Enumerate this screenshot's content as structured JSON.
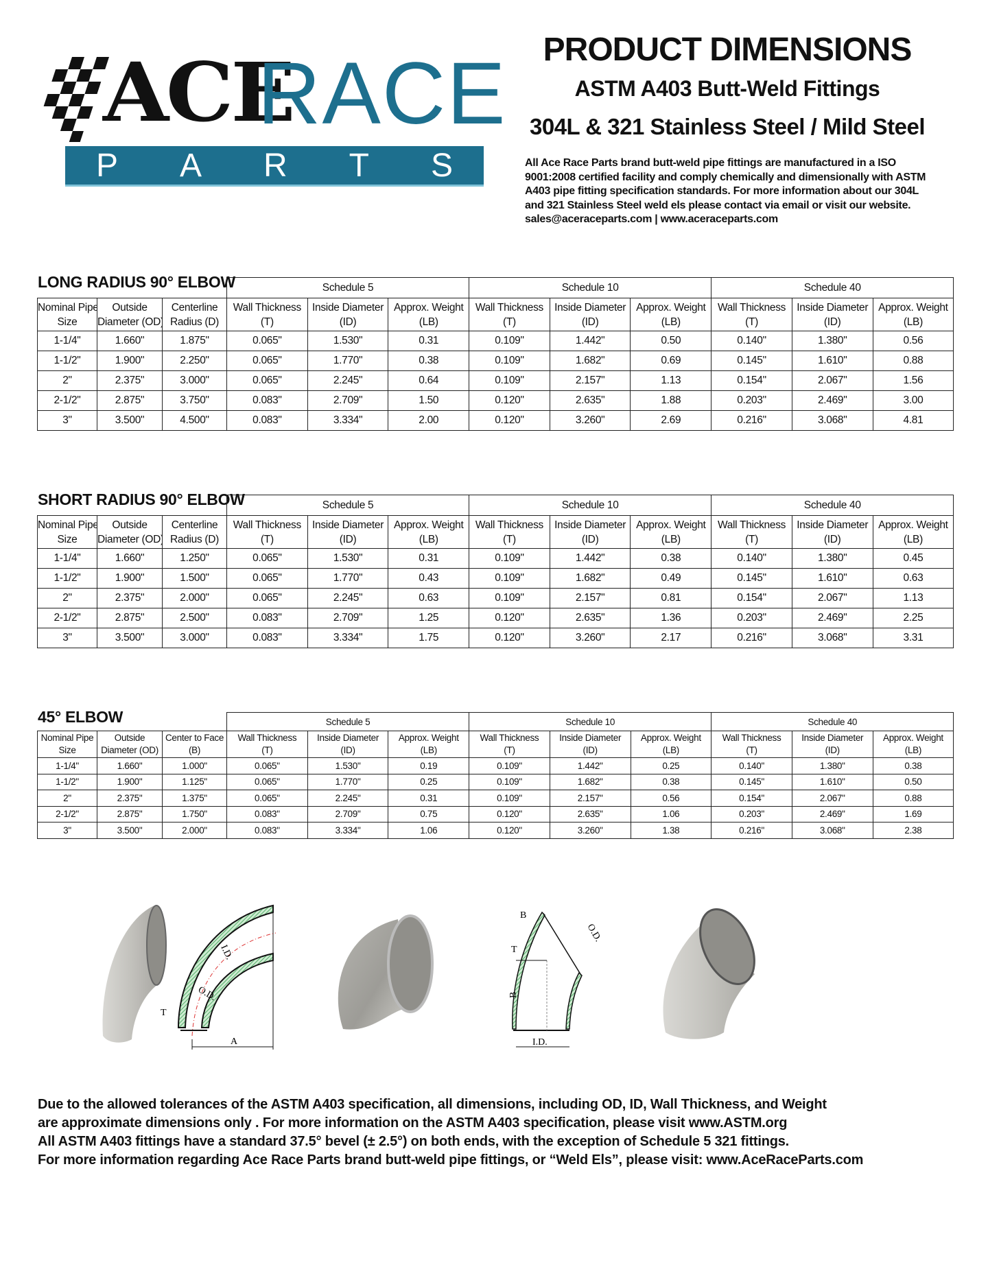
{
  "logo": {
    "word1": "ACE",
    "word2": "RACE",
    "word3": [
      "P",
      "A",
      "R",
      "T",
      "S"
    ],
    "colors": {
      "brand": "#1d6f8e",
      "dark": "#111111"
    }
  },
  "header": {
    "title": "PRODUCT DIMENSIONS",
    "subtitle1": "ASTM A403 Butt-Weld Fittings",
    "subtitle2": "304L & 321 Stainless Steel / Mild Steel",
    "intro": "All Ace Race Parts brand butt-weld pipe fittings are manufactured in a ISO 9001:2008 certified facility and comply chemically and dimensionally with ASTM A403 pipe fitting specification standards. For more information about our 304L and 321 Stainless Steel weld els please contact via email or visit our website. sales@aceraceparts.com | www.aceraceparts.com"
  },
  "tables": [
    {
      "title": "LONG RADIUS 90° ELBOW",
      "schedules": [
        "Schedule 5",
        "Schedule 10",
        "Schedule 40"
      ],
      "headers": [
        [
          "Nominal Pipe",
          "Size"
        ],
        [
          "Outside",
          "Diameter (OD)"
        ],
        [
          "Centerline",
          "Radius (D)"
        ],
        [
          "Wall Thickness",
          "(T)"
        ],
        [
          "Inside Diameter",
          "(ID)"
        ],
        [
          "Approx. Weight",
          "(LB)"
        ],
        [
          "Wall Thickness",
          "(T)"
        ],
        [
          "Inside Diameter",
          "(ID)"
        ],
        [
          "Approx. Weight",
          "(LB)"
        ],
        [
          "Wall Thickness",
          "(T)"
        ],
        [
          "Inside Diameter",
          "(ID)"
        ],
        [
          "Approx. Weight",
          "(LB)"
        ]
      ],
      "rows": [
        [
          "1-1/4\"",
          "1.660\"",
          "1.875\"",
          "0.065\"",
          "1.530\"",
          "0.31",
          "0.109\"",
          "1.442\"",
          "0.50",
          "0.140\"",
          "1.380\"",
          "0.56"
        ],
        [
          "1-1/2\"",
          "1.900\"",
          "2.250\"",
          "0.065\"",
          "1.770\"",
          "0.38",
          "0.109\"",
          "1.682\"",
          "0.69",
          "0.145\"",
          "1.610\"",
          "0.88"
        ],
        [
          "2\"",
          "2.375\"",
          "3.000\"",
          "0.065\"",
          "2.245\"",
          "0.64",
          "0.109\"",
          "2.157\"",
          "1.13",
          "0.154\"",
          "2.067\"",
          "1.56"
        ],
        [
          "2-1/2\"",
          "2.875\"",
          "3.750\"",
          "0.083\"",
          "2.709\"",
          "1.50",
          "0.120\"",
          "2.635\"",
          "1.88",
          "0.203\"",
          "2.469\"",
          "3.00"
        ],
        [
          "3\"",
          "3.500\"",
          "4.500\"",
          "0.083\"",
          "3.334\"",
          "2.00",
          "0.120\"",
          "3.260\"",
          "2.69",
          "0.216\"",
          "3.068\"",
          "4.81"
        ]
      ]
    },
    {
      "title": "SHORT RADIUS 90° ELBOW",
      "schedules": [
        "Schedule 5",
        "Schedule 10",
        "Schedule 40"
      ],
      "headers": [
        [
          "Nominal Pipe",
          "Size"
        ],
        [
          "Outside",
          "Diameter (OD)"
        ],
        [
          "Centerline",
          "Radius (D)"
        ],
        [
          "Wall Thickness",
          "(T)"
        ],
        [
          "Inside Diameter",
          "(ID)"
        ],
        [
          "Approx. Weight",
          "(LB)"
        ],
        [
          "Wall Thickness",
          "(T)"
        ],
        [
          "Inside Diameter",
          "(ID)"
        ],
        [
          "Approx. Weight",
          "(LB)"
        ],
        [
          "Wall Thickness",
          "(T)"
        ],
        [
          "Inside Diameter",
          "(ID)"
        ],
        [
          "Approx. Weight",
          "(LB)"
        ]
      ],
      "rows": [
        [
          "1-1/4\"",
          "1.660\"",
          "1.250\"",
          "0.065\"",
          "1.530\"",
          "0.31",
          "0.109\"",
          "1.442\"",
          "0.38",
          "0.140\"",
          "1.380\"",
          "0.45"
        ],
        [
          "1-1/2\"",
          "1.900\"",
          "1.500\"",
          "0.065\"",
          "1.770\"",
          "0.43",
          "0.109\"",
          "1.682\"",
          "0.49",
          "0.145\"",
          "1.610\"",
          "0.63"
        ],
        [
          "2\"",
          "2.375\"",
          "2.000\"",
          "0.065\"",
          "2.245\"",
          "0.63",
          "0.109\"",
          "2.157\"",
          "0.81",
          "0.154\"",
          "2.067\"",
          "1.13"
        ],
        [
          "2-1/2\"",
          "2.875\"",
          "2.500\"",
          "0.083\"",
          "2.709\"",
          "1.25",
          "0.120\"",
          "2.635\"",
          "1.36",
          "0.203\"",
          "2.469\"",
          "2.25"
        ],
        [
          "3\"",
          "3.500\"",
          "3.000\"",
          "0.083\"",
          "3.334\"",
          "1.75",
          "0.120\"",
          "3.260\"",
          "2.17",
          "0.216\"",
          "3.068\"",
          "3.31"
        ]
      ]
    },
    {
      "title": "45° ELBOW",
      "schedules": [
        "Schedule 5",
        "Schedule 10",
        "Schedule 40"
      ],
      "headers": [
        [
          "Nominal Pipe",
          "Size"
        ],
        [
          "Outside",
          "Diameter (OD)"
        ],
        [
          "Center to Face",
          "(B)"
        ],
        [
          "Wall Thickness",
          "(T)"
        ],
        [
          "Inside Diameter",
          "(ID)"
        ],
        [
          "Approx. Weight",
          "(LB)"
        ],
        [
          "Wall Thickness",
          "(T)"
        ],
        [
          "Inside Diameter",
          "(ID)"
        ],
        [
          "Approx. Weight",
          "(LB)"
        ],
        [
          "Wall Thickness",
          "(T)"
        ],
        [
          "Inside Diameter",
          "(ID)"
        ],
        [
          "Approx. Weight",
          "(LB)"
        ]
      ],
      "rows": [
        [
          "1-1/4\"",
          "1.660\"",
          "1.000\"",
          "0.065\"",
          "1.530\"",
          "0.19",
          "0.109\"",
          "1.442\"",
          "0.25",
          "0.140\"",
          "1.380\"",
          "0.38"
        ],
        [
          "1-1/2\"",
          "1.900\"",
          "1.125\"",
          "0.065\"",
          "1.770\"",
          "0.25",
          "0.109\"",
          "1.682\"",
          "0.38",
          "0.145\"",
          "1.610\"",
          "0.50"
        ],
        [
          "2\"",
          "2.375\"",
          "1.375\"",
          "0.065\"",
          "2.245\"",
          "0.31",
          "0.109\"",
          "2.157\"",
          "0.56",
          "0.154\"",
          "2.067\"",
          "0.88"
        ],
        [
          "2-1/2\"",
          "2.875\"",
          "1.750\"",
          "0.083\"",
          "2.709\"",
          "0.75",
          "0.120\"",
          "2.635\"",
          "1.06",
          "0.203\"",
          "2.469\"",
          "1.69"
        ],
        [
          "3\"",
          "3.500\"",
          "2.000\"",
          "0.083\"",
          "3.334\"",
          "1.06",
          "0.120\"",
          "3.260\"",
          "1.38",
          "0.216\"",
          "3.068\"",
          "2.38"
        ]
      ]
    }
  ],
  "diagrams": {
    "lr90": {
      "t": "T",
      "od": "O.D.",
      "id": "I.D.",
      "a": "A"
    },
    "e45": {
      "b_top": "B",
      "b_side": "B",
      "od": "O.D.",
      "t": "T",
      "id": "I.D."
    },
    "accent": "#2e9a4a"
  },
  "footer": [
    "Due to the allowed tolerances of the ASTM A403 specification, all dimensions, including OD, ID, Wall Thickness, and Weight",
    "are approximate dimensions only . For more information on the ASTM A403 specification, please visit www.ASTM.org",
    "All ASTM A403 fittings have a standard 37.5° bevel (± 2.5°) on both ends, with the exception of Schedule 5 321 fittings.",
    "For more information regarding Ace Race Parts brand butt-weld pipe fittings, or “Weld Els”, please visit: www.AceRaceParts.com"
  ]
}
